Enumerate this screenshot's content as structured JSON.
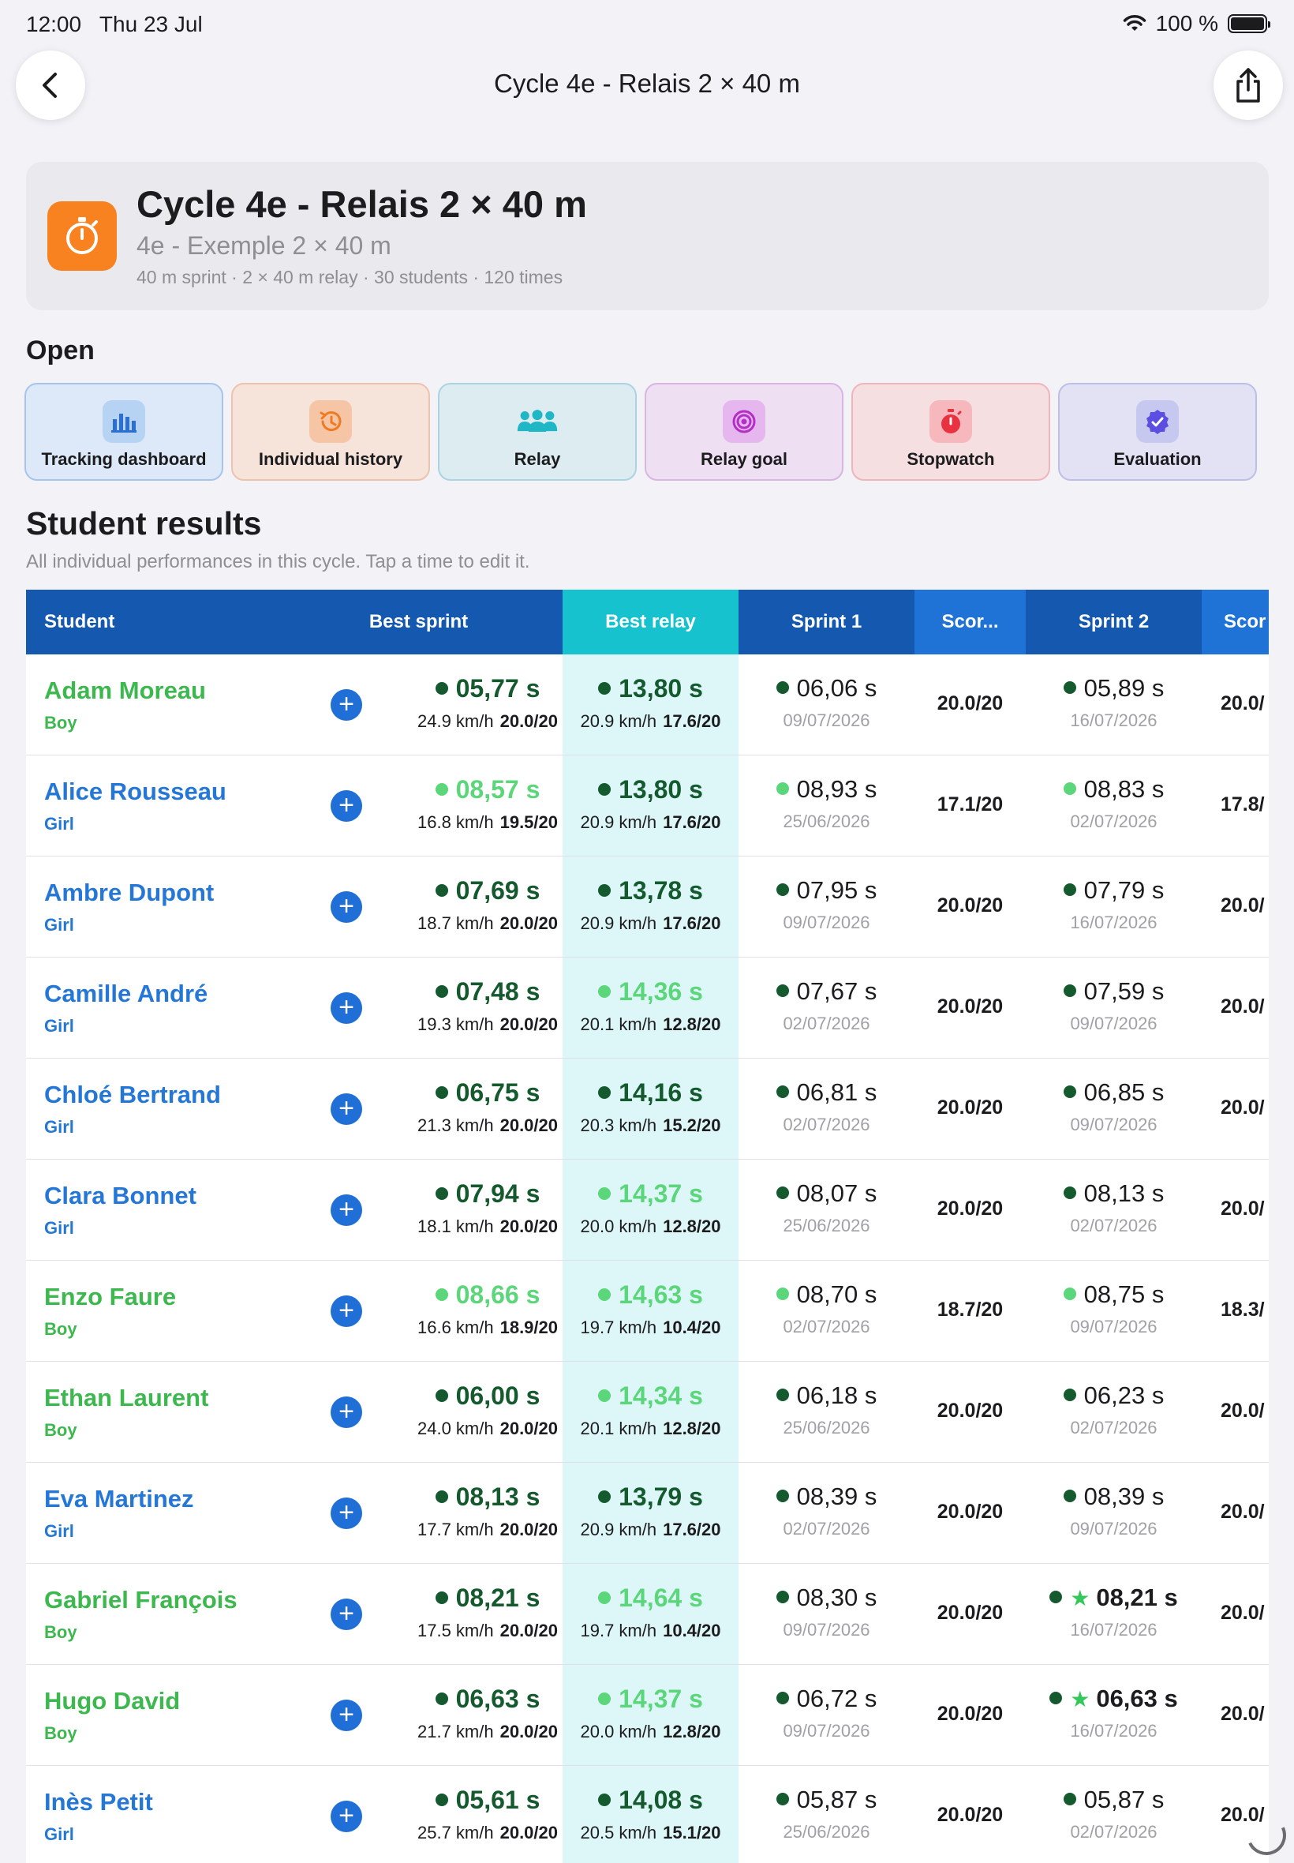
{
  "status": {
    "time": "12:00",
    "date": "Thu 23 Jul",
    "battery": "100 %"
  },
  "nav": {
    "title": "Cycle 4e - Relais 2 × 40 m"
  },
  "header": {
    "title": "Cycle 4e - Relais 2 × 40 m",
    "subtitle": "4e - Exemple 2 × 40 m",
    "meta": "40 m sprint · 2 × 40 m relay · 30 students · 120 times"
  },
  "open": {
    "title": "Open",
    "buttons": [
      {
        "label": "Tracking dashboard",
        "icon": "chart-bars-icon"
      },
      {
        "label": "Individual history",
        "icon": "history-clock-icon"
      },
      {
        "label": "Relay",
        "icon": "group-icon"
      },
      {
        "label": "Relay goal",
        "icon": "target-icon"
      },
      {
        "label": "Stopwatch",
        "icon": "stopwatch-icon"
      },
      {
        "label": "Evaluation",
        "icon": "checkmark-seal-icon"
      }
    ]
  },
  "results": {
    "title": "Student results",
    "subtitle": "All individual performances in this cycle. Tap a time to edit it.",
    "columns": {
      "student": "Student",
      "best_sprint": "Best sprint",
      "best_relay": "Best relay",
      "sprint1": "Sprint 1",
      "score1": "Scor...",
      "sprint2": "Sprint 2",
      "score2": "Scor"
    },
    "rows": [
      {
        "name": "Adam Moreau",
        "gender": "Boy",
        "best_sprint": {
          "time": "05,77 s",
          "speed": "24.9 km/h",
          "score": "20.0/20"
        },
        "best_relay": {
          "time": "13,80 s",
          "speed": "20.9 km/h",
          "score": "17.6/20"
        },
        "sprint1": {
          "time": "06,06 s",
          "date": "09/07/2026"
        },
        "score1": "20.0/20",
        "sprint2": {
          "time": "05,89 s",
          "date": "16/07/2026"
        },
        "score2": "20.0/"
      },
      {
        "name": "Alice Rousseau",
        "gender": "Girl",
        "best_sprint": {
          "time": "08,57 s",
          "speed": "16.8 km/h",
          "score": "19.5/20"
        },
        "best_relay": {
          "time": "13,80 s",
          "speed": "20.9 km/h",
          "score": "17.6/20"
        },
        "sprint1": {
          "time": "08,93 s",
          "date": "25/06/2026"
        },
        "score1": "17.1/20",
        "sprint2": {
          "time": "08,83 s",
          "date": "02/07/2026"
        },
        "score2": "17.8/"
      },
      {
        "name": "Ambre Dupont",
        "gender": "Girl",
        "best_sprint": {
          "time": "07,69 s",
          "speed": "18.7 km/h",
          "score": "20.0/20"
        },
        "best_relay": {
          "time": "13,78 s",
          "speed": "20.9 km/h",
          "score": "17.6/20"
        },
        "sprint1": {
          "time": "07,95 s",
          "date": "09/07/2026"
        },
        "score1": "20.0/20",
        "sprint2": {
          "time": "07,79 s",
          "date": "16/07/2026"
        },
        "score2": "20.0/"
      },
      {
        "name": "Camille André",
        "gender": "Girl",
        "best_sprint": {
          "time": "07,48 s",
          "speed": "19.3 km/h",
          "score": "20.0/20"
        },
        "best_relay": {
          "time": "14,36 s",
          "speed": "20.1 km/h",
          "score": "12.8/20"
        },
        "sprint1": {
          "time": "07,67 s",
          "date": "02/07/2026"
        },
        "score1": "20.0/20",
        "sprint2": {
          "time": "07,59 s",
          "date": "09/07/2026"
        },
        "score2": "20.0/"
      },
      {
        "name": "Chloé Bertrand",
        "gender": "Girl",
        "best_sprint": {
          "time": "06,75 s",
          "speed": "21.3 km/h",
          "score": "20.0/20"
        },
        "best_relay": {
          "time": "14,16 s",
          "speed": "20.3 km/h",
          "score": "15.2/20"
        },
        "sprint1": {
          "time": "06,81 s",
          "date": "02/07/2026"
        },
        "score1": "20.0/20",
        "sprint2": {
          "time": "06,85 s",
          "date": "09/07/2026"
        },
        "score2": "20.0/"
      },
      {
        "name": "Clara Bonnet",
        "gender": "Girl",
        "best_sprint": {
          "time": "07,94 s",
          "speed": "18.1 km/h",
          "score": "20.0/20"
        },
        "best_relay": {
          "time": "14,37 s",
          "speed": "20.0 km/h",
          "score": "12.8/20"
        },
        "sprint1": {
          "time": "08,07 s",
          "date": "25/06/2026"
        },
        "score1": "20.0/20",
        "sprint2": {
          "time": "08,13 s",
          "date": "02/07/2026"
        },
        "score2": "20.0/"
      },
      {
        "name": "Enzo Faure",
        "gender": "Boy",
        "best_sprint": {
          "time": "08,66 s",
          "speed": "16.6 km/h",
          "score": "18.9/20"
        },
        "best_relay": {
          "time": "14,63 s",
          "speed": "19.7 km/h",
          "score": "10.4/20"
        },
        "sprint1": {
          "time": "08,70 s",
          "date": "02/07/2026"
        },
        "score1": "18.7/20",
        "sprint2": {
          "time": "08,75 s",
          "date": "09/07/2026"
        },
        "score2": "18.3/"
      },
      {
        "name": "Ethan Laurent",
        "gender": "Boy",
        "best_sprint": {
          "time": "06,00 s",
          "speed": "24.0 km/h",
          "score": "20.0/20"
        },
        "best_relay": {
          "time": "14,34 s",
          "speed": "20.1 km/h",
          "score": "12.8/20"
        },
        "sprint1": {
          "time": "06,18 s",
          "date": "25/06/2026"
        },
        "score1": "20.0/20",
        "sprint2": {
          "time": "06,23 s",
          "date": "02/07/2026"
        },
        "score2": "20.0/"
      },
      {
        "name": "Eva Martinez",
        "gender": "Girl",
        "best_sprint": {
          "time": "08,13 s",
          "speed": "17.7 km/h",
          "score": "20.0/20"
        },
        "best_relay": {
          "time": "13,79 s",
          "speed": "20.9 km/h",
          "score": "17.6/20"
        },
        "sprint1": {
          "time": "08,39 s",
          "date": "02/07/2026"
        },
        "score1": "20.0/20",
        "sprint2": {
          "time": "08,39 s",
          "date": "09/07/2026"
        },
        "score2": "20.0/"
      },
      {
        "name": "Gabriel François",
        "gender": "Boy",
        "best_sprint": {
          "time": "08,21 s",
          "speed": "17.5 km/h",
          "score": "20.0/20"
        },
        "best_relay": {
          "time": "14,64 s",
          "speed": "19.7 km/h",
          "score": "10.4/20"
        },
        "sprint1": {
          "time": "08,30 s",
          "date": "09/07/2026"
        },
        "score1": "20.0/20",
        "sprint2": {
          "time": "08,21 s",
          "date": "16/07/2026"
        },
        "score2": "20.0/"
      },
      {
        "name": "Hugo David",
        "gender": "Boy",
        "best_sprint": {
          "time": "06,63 s",
          "speed": "21.7 km/h",
          "score": "20.0/20"
        },
        "best_relay": {
          "time": "14,37 s",
          "speed": "20.0 km/h",
          "score": "12.8/20"
        },
        "sprint1": {
          "time": "06,72 s",
          "date": "09/07/2026"
        },
        "score1": "20.0/20",
        "sprint2": {
          "time": "06,63 s",
          "date": "16/07/2026"
        },
        "score2": "20.0/"
      },
      {
        "name": "Inès Petit",
        "gender": "Girl",
        "best_sprint": {
          "time": "05,61 s",
          "speed": "25.7 km/h",
          "score": "20.0/20"
        },
        "best_relay": {
          "time": "14,08 s",
          "speed": "20.5 km/h",
          "score": "15.1/20"
        },
        "sprint1": {
          "time": "05,87 s",
          "date": "25/06/2026"
        },
        "score1": "20.0/20",
        "sprint2": {
          "time": "05,87 s",
          "date": "02/07/2026"
        },
        "score2": "20.0/"
      }
    ]
  }
}
